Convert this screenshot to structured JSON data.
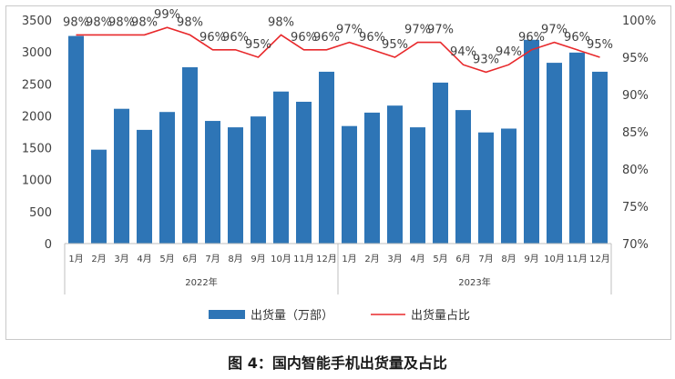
{
  "caption": "图 4：国内智能手机出货量及占比",
  "colors": {
    "bar": "#2e75b6",
    "line": "#e8282b",
    "axis": "#bfbfbf"
  },
  "chart_data": {
    "type": "bar",
    "title": "",
    "categories": [
      "1月",
      "2月",
      "3月",
      "4月",
      "5月",
      "6月",
      "7月",
      "8月",
      "9月",
      "10月",
      "11月",
      "12月",
      "1月",
      "2月",
      "3月",
      "4月",
      "5月",
      "6月",
      "7月",
      "8月",
      "9月",
      "10月",
      "11月",
      "12月"
    ],
    "year_groups": [
      {
        "label": "2022年",
        "start": 0,
        "end": 11
      },
      {
        "label": "2023年",
        "start": 12,
        "end": 23
      }
    ],
    "series": [
      {
        "name": "出货量（万部）",
        "type": "bar",
        "axis": "left",
        "values": [
          3250,
          1470,
          2110,
          1780,
          2060,
          2760,
          1920,
          1820,
          1990,
          2380,
          2220,
          2690,
          1840,
          2050,
          2160,
          1820,
          2520,
          2090,
          1740,
          1800,
          3190,
          2830,
          2990,
          2690
        ]
      },
      {
        "name": "出货量占比",
        "type": "line",
        "axis": "right",
        "values": [
          98,
          98,
          98,
          98,
          99,
          98,
          96,
          96,
          95,
          98,
          96,
          96,
          97,
          96,
          95,
          97,
          97,
          94,
          93,
          94,
          96,
          97,
          96,
          95
        ],
        "labels": [
          "98%",
          "98%",
          "98%",
          "98%",
          "99%",
          "98%",
          "96%",
          "96%",
          "95%",
          "98%",
          "96%",
          "96%",
          "97%",
          "96%",
          "95%",
          "97%",
          "97%",
          "94%",
          "93%",
          "94%",
          "96%",
          "97%",
          "96%",
          "95%"
        ]
      }
    ],
    "y_left": {
      "min": 0,
      "max": 3500,
      "step": 500,
      "ticks": [
        "0",
        "500",
        "1000",
        "1500",
        "2000",
        "2500",
        "3000",
        "3500"
      ]
    },
    "y_right": {
      "min": 70,
      "max": 100,
      "step": 5,
      "ticks": [
        "70%",
        "75%",
        "80%",
        "85%",
        "90%",
        "95%",
        "100%"
      ]
    },
    "legend": {
      "position": "bottom",
      "items": [
        "出货量（万部）",
        "出货量占比"
      ]
    },
    "grid": false
  }
}
